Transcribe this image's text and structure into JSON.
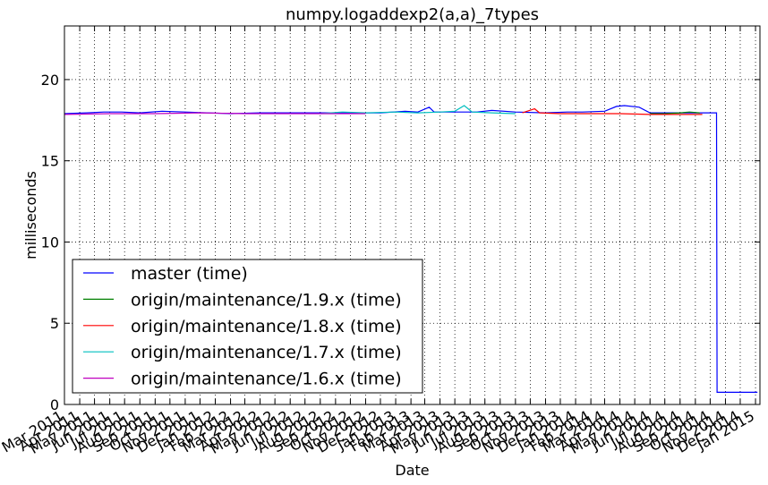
{
  "chart_data": {
    "type": "line",
    "title": "numpy.logaddexp2(a,a)_7types",
    "xlabel": "Date",
    "ylabel": "milliseconds",
    "x_range": [
      "2011-03-01",
      "2015-01-10"
    ],
    "ylim": [
      0,
      23.3
    ],
    "y_ticks": [
      0,
      5,
      10,
      15,
      20
    ],
    "x_ticks": [
      "Mar 2011",
      "Apr 2011",
      "May 2011",
      "Jun 2011",
      "Jul 2011",
      "Aug 2011",
      "Sep 2011",
      "Oct 2011",
      "Nov 2011",
      "Dec 2011",
      "Jan 2012",
      "Feb 2012",
      "Mar 2012",
      "Apr 2012",
      "May 2012",
      "Jun 2012",
      "Jul 2012",
      "Aug 2012",
      "Sep 2012",
      "Oct 2012",
      "Nov 2012",
      "Dec 2012",
      "Jan 2013",
      "Feb 2013",
      "Mar 2013",
      "Apr 2013",
      "May 2013",
      "Jun 2013",
      "Jul 2013",
      "Aug 2013",
      "Sep 2013",
      "Oct 2013",
      "Nov 2013",
      "Dec 2013",
      "Jan 2014",
      "Feb 2014",
      "Mar 2014",
      "Apr 2014",
      "May 2014",
      "Jun 2014",
      "Jul 2014",
      "Aug 2014",
      "Sep 2014",
      "Oct 2014",
      "Nov 2014",
      "Dec 2014",
      "Jan 2015"
    ],
    "grid": true,
    "legend_position": "lower-left",
    "series": [
      {
        "name": "master (time)",
        "color": "#0000ff",
        "points": [
          [
            "2011-03-01",
            17.9
          ],
          [
            "2011-04-15",
            17.95
          ],
          [
            "2011-05-20",
            18.0
          ],
          [
            "2011-06-25",
            18.0
          ],
          [
            "2011-08-01",
            17.95
          ],
          [
            "2011-09-15",
            18.05
          ],
          [
            "2011-11-01",
            18.0
          ],
          [
            "2011-12-15",
            17.95
          ],
          [
            "2012-02-01",
            17.9
          ],
          [
            "2012-04-01",
            17.95
          ],
          [
            "2012-06-01",
            17.95
          ],
          [
            "2012-08-01",
            17.95
          ],
          [
            "2012-10-01",
            17.95
          ],
          [
            "2012-12-01",
            17.95
          ],
          [
            "2013-01-20",
            18.05
          ],
          [
            "2013-02-15",
            18.0
          ],
          [
            "2013-03-10",
            18.3
          ],
          [
            "2013-03-20",
            18.0
          ],
          [
            "2013-05-01",
            18.0
          ],
          [
            "2013-06-15",
            18.0
          ],
          [
            "2013-07-15",
            18.1
          ],
          [
            "2013-09-01",
            18.0
          ],
          [
            "2013-11-01",
            17.95
          ],
          [
            "2013-12-15",
            18.0
          ],
          [
            "2014-01-15",
            18.0
          ],
          [
            "2014-03-01",
            18.05
          ],
          [
            "2014-03-25",
            18.35
          ],
          [
            "2014-04-10",
            18.4
          ],
          [
            "2014-05-10",
            18.3
          ],
          [
            "2014-06-01",
            17.95
          ],
          [
            "2014-07-15",
            17.95
          ],
          [
            "2014-09-01",
            17.95
          ],
          [
            "2014-10-01",
            17.95
          ],
          [
            "2014-10-14",
            17.95
          ],
          [
            "2014-10-15",
            0.75
          ],
          [
            "2014-11-15",
            0.75
          ],
          [
            "2014-12-20",
            0.75
          ],
          [
            "2015-01-05",
            0.75
          ]
        ]
      },
      {
        "name": "origin/maintenance/1.9.x (time)",
        "color": "#008000",
        "points": [
          [
            "2014-06-01",
            17.9
          ],
          [
            "2014-07-01",
            17.9
          ],
          [
            "2014-08-01",
            17.95
          ],
          [
            "2014-08-20",
            18.0
          ],
          [
            "2014-09-10",
            17.95
          ]
        ]
      },
      {
        "name": "origin/maintenance/1.8.x (time)",
        "color": "#ff0000",
        "points": [
          [
            "2013-09-15",
            17.95
          ],
          [
            "2013-10-10",
            18.2
          ],
          [
            "2013-10-20",
            17.95
          ],
          [
            "2013-12-01",
            17.9
          ],
          [
            "2014-02-01",
            17.9
          ],
          [
            "2014-04-01",
            17.9
          ],
          [
            "2014-06-01",
            17.85
          ],
          [
            "2014-08-01",
            17.85
          ],
          [
            "2014-09-15",
            17.85
          ]
        ]
      },
      {
        "name": "origin/maintenance/1.7.x (time)",
        "color": "#00bfbf",
        "points": [
          [
            "2012-08-01",
            17.9
          ],
          [
            "2012-09-15",
            18.0
          ],
          [
            "2012-11-01",
            17.95
          ],
          [
            "2013-01-01",
            18.0
          ],
          [
            "2013-02-15",
            17.95
          ],
          [
            "2013-04-01",
            18.0
          ],
          [
            "2013-05-01",
            18.05
          ],
          [
            "2013-05-20",
            18.4
          ],
          [
            "2013-06-05",
            18.0
          ],
          [
            "2013-07-15",
            17.95
          ],
          [
            "2013-09-01",
            17.9
          ]
        ]
      },
      {
        "name": "origin/maintenance/1.6.x (time)",
        "color": "#bf00bf",
        "points": [
          [
            "2011-03-01",
            17.85
          ],
          [
            "2011-06-01",
            17.9
          ],
          [
            "2011-09-01",
            17.9
          ],
          [
            "2011-12-01",
            17.95
          ],
          [
            "2012-03-01",
            17.9
          ],
          [
            "2012-06-01",
            17.9
          ],
          [
            "2012-09-01",
            17.9
          ],
          [
            "2012-11-01",
            17.9
          ]
        ]
      }
    ]
  }
}
